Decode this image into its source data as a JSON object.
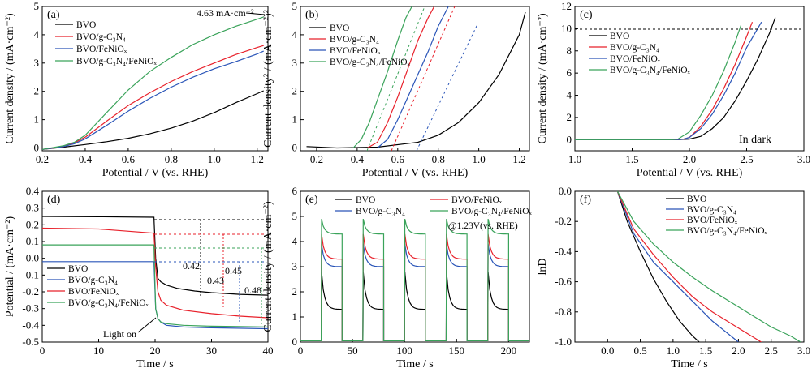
{
  "colors": {
    "black": "#000000",
    "red": "#e8212b",
    "blue": "#2a55b8",
    "green": "#3aa35a"
  },
  "chart_data": [
    {
      "panel": "(a)",
      "type": "line",
      "xlabel": "Potential / V (vs. RHE)",
      "ylabel": "Current density / (mA·cm⁻²)",
      "xlim": [
        0.2,
        1.25
      ],
      "ylim": [
        -0.1,
        5
      ],
      "xticks": [
        "0.2",
        "0.4",
        "0.6",
        "0.8",
        "1.0",
        "1.2"
      ],
      "yticks": [
        "0",
        "1",
        "2",
        "3",
        "4",
        "5"
      ],
      "annotation": "4.63 mA·cm⁻²",
      "series": [
        {
          "name": "BVO",
          "color": "black",
          "x": [
            0.2,
            0.3,
            0.4,
            0.5,
            0.6,
            0.7,
            0.8,
            0.9,
            1.0,
            1.1,
            1.2,
            1.23
          ],
          "y": [
            -0.05,
            0.03,
            0.12,
            0.22,
            0.34,
            0.5,
            0.7,
            0.95,
            1.25,
            1.6,
            1.92,
            2.02
          ]
        },
        {
          "name": "BVO/g-C₃N₄",
          "color": "red",
          "x": [
            0.2,
            0.3,
            0.35,
            0.4,
            0.5,
            0.6,
            0.7,
            0.8,
            0.9,
            1.0,
            1.1,
            1.2,
            1.23
          ],
          "y": [
            -0.05,
            0.05,
            0.18,
            0.38,
            0.95,
            1.5,
            1.95,
            2.35,
            2.7,
            3.0,
            3.3,
            3.55,
            3.62
          ]
        },
        {
          "name": "BVO/FeNiOₓ",
          "color": "blue",
          "x": [
            0.2,
            0.3,
            0.35,
            0.4,
            0.5,
            0.6,
            0.7,
            0.8,
            0.9,
            1.0,
            1.1,
            1.2,
            1.23
          ],
          "y": [
            -0.05,
            0.05,
            0.15,
            0.32,
            0.8,
            1.3,
            1.75,
            2.15,
            2.5,
            2.8,
            3.05,
            3.32,
            3.42
          ]
        },
        {
          "name": "BVO/g-C₃N₄/FeNiOₓ",
          "color": "green",
          "x": [
            0.2,
            0.3,
            0.35,
            0.4,
            0.5,
            0.6,
            0.7,
            0.8,
            0.9,
            1.0,
            1.1,
            1.2,
            1.23
          ],
          "y": [
            -0.05,
            0.08,
            0.2,
            0.45,
            1.25,
            2.05,
            2.7,
            3.2,
            3.65,
            4.0,
            4.3,
            4.55,
            4.63
          ]
        }
      ]
    },
    {
      "panel": "(b)",
      "type": "line",
      "xlabel": "Potential / V (vs. RHE)",
      "ylabel": "Current density² / (mA·cm⁻²)²",
      "xlim": [
        0.12,
        1.25
      ],
      "ylim": [
        -0.1,
        5
      ],
      "xticks": [
        "0.2",
        "0.4",
        "0.6",
        "0.8",
        "1.0",
        "1.2"
      ],
      "yticks": [
        "0",
        "1",
        "2",
        "3",
        "4",
        "5"
      ],
      "series": [
        {
          "name": "BVO",
          "color": "black",
          "x": [
            0.15,
            0.3,
            0.5,
            0.7,
            0.8,
            0.9,
            1.0,
            1.1,
            1.2,
            1.23
          ],
          "y": [
            0.05,
            0.0,
            0.03,
            0.2,
            0.45,
            0.9,
            1.6,
            2.6,
            4.0,
            4.8
          ]
        },
        {
          "name": "BVO/g-C₃N₄",
          "color": "red",
          "x": [
            0.45,
            0.5,
            0.55,
            0.6,
            0.65,
            0.7,
            0.75,
            0.78
          ],
          "y": [
            0.0,
            0.2,
            0.9,
            1.8,
            2.8,
            3.8,
            4.6,
            5.0
          ]
        },
        {
          "name": "BVO/FeNiOₓ",
          "color": "blue",
          "x": [
            0.5,
            0.55,
            0.6,
            0.65,
            0.7,
            0.75,
            0.8,
            0.85
          ],
          "y": [
            0.0,
            0.3,
            1.0,
            1.8,
            2.6,
            3.4,
            4.3,
            5.0
          ]
        },
        {
          "name": "BVO/g-C₃N₄/FeNiOₓ",
          "color": "green",
          "x": [
            0.38,
            0.42,
            0.46,
            0.5,
            0.55,
            0.6,
            0.64,
            0.67
          ],
          "y": [
            0.0,
            0.3,
            0.9,
            1.7,
            2.7,
            3.8,
            4.6,
            5.0
          ]
        }
      ]
    },
    {
      "panel": "(c)",
      "type": "line",
      "xlabel": "Potential / V (vs. RHE)",
      "ylabel": "Current density / (mA·cm⁻²)",
      "xlim": [
        1.0,
        3.0
      ],
      "ylim": [
        -1,
        12
      ],
      "xticks": [
        "1.0",
        "1.5",
        "2.0",
        "2.5",
        "3.0"
      ],
      "yticks": [
        "0",
        "2",
        "4",
        "6",
        "8",
        "10",
        "12"
      ],
      "annotation": "In dark",
      "series": [
        {
          "name": "BVO",
          "color": "black",
          "x": [
            1.0,
            1.9,
            2.0,
            2.1,
            2.2,
            2.3,
            2.4,
            2.5,
            2.6,
            2.7,
            2.75
          ],
          "y": [
            0,
            0,
            0.05,
            0.3,
            1.0,
            2.0,
            3.5,
            5.3,
            7.3,
            9.6,
            11
          ]
        },
        {
          "name": "BVO/g-C₃N₄",
          "color": "red",
          "x": [
            1.0,
            1.9,
            1.95,
            2.0,
            2.1,
            2.2,
            2.3,
            2.4,
            2.5,
            2.55
          ],
          "y": [
            0,
            0,
            0.05,
            0.2,
            1.2,
            2.7,
            4.6,
            6.8,
            9.3,
            10.6
          ]
        },
        {
          "name": "BVO/FeNiOₓ",
          "color": "blue",
          "x": [
            1.0,
            1.9,
            1.95,
            2.0,
            2.1,
            2.2,
            2.3,
            2.4,
            2.5,
            2.63
          ],
          "y": [
            0,
            0,
            0.05,
            0.2,
            1.0,
            2.3,
            4.0,
            6.0,
            8.3,
            10.6
          ]
        },
        {
          "name": "BVO/g-C₃N₄/FeNiOₓ",
          "color": "green",
          "x": [
            1.0,
            1.85,
            1.9,
            2.0,
            2.1,
            2.2,
            2.3,
            2.4,
            2.45
          ],
          "y": [
            0,
            0,
            0.05,
            0.7,
            2.2,
            4.0,
            6.2,
            8.8,
            10.3
          ]
        }
      ]
    },
    {
      "panel": "(d)",
      "type": "line",
      "xlabel": "Time / s",
      "ylabel": "Potential / (mA·cm⁻²)",
      "xlim": [
        0,
        40
      ],
      "ylim": [
        -0.5,
        0.4
      ],
      "xticks": [
        "0",
        "10",
        "20",
        "30",
        "40"
      ],
      "yticks": [
        "0.4",
        "0.3",
        "0.2",
        "0.1",
        "0.0",
        "-0.1",
        "-0.2",
        "-0.3",
        "-0.4",
        "-0.5"
      ],
      "annotations": [
        {
          "text": "0.42",
          "color": "black"
        },
        {
          "text": "0.43",
          "color": "red"
        },
        {
          "text": "0.45",
          "color": "blue"
        },
        {
          "text": "0.48",
          "color": "green"
        },
        {
          "text": "Light on",
          "color": "black"
        }
      ],
      "series": [
        {
          "name": "BVO",
          "color": "black",
          "x": [
            0,
            10,
            19.8,
            20.1,
            20.5,
            21,
            22,
            24,
            27,
            30,
            35,
            40
          ],
          "y": [
            0.25,
            0.248,
            0.245,
            0.0,
            -0.12,
            -0.14,
            -0.16,
            -0.18,
            -0.195,
            -0.205,
            -0.215,
            -0.22
          ]
        },
        {
          "name": "BVO/g-C₃N₄",
          "color": "blue",
          "x": [
            0,
            10,
            19.8,
            20.1,
            20.5,
            21,
            22,
            25,
            30,
            40
          ],
          "y": [
            -0.02,
            -0.02,
            -0.02,
            -0.3,
            -0.36,
            -0.38,
            -0.4,
            -0.41,
            -0.415,
            -0.42
          ]
        },
        {
          "name": "BVO/FeNiOₓ",
          "color": "red",
          "x": [
            0,
            10,
            19.8,
            20.1,
            20.5,
            21,
            22,
            25,
            30,
            35,
            40
          ],
          "y": [
            0.18,
            0.175,
            0.15,
            -0.05,
            -0.2,
            -0.25,
            -0.28,
            -0.31,
            -0.33,
            -0.345,
            -0.355
          ]
        },
        {
          "name": "BVO/g-C₃N₄/FeNiOₓ",
          "color": "green",
          "x": [
            0,
            10,
            19.8,
            20.1,
            20.5,
            21,
            22,
            25,
            30,
            40
          ],
          "y": [
            0.08,
            0.08,
            0.08,
            -0.3,
            -0.36,
            -0.38,
            -0.39,
            -0.4,
            -0.405,
            -0.41
          ]
        }
      ]
    },
    {
      "panel": "(e)",
      "type": "line",
      "xlabel": "Time / s",
      "ylabel": "Current density / (mA·cm⁻²)",
      "xlim": [
        0,
        220
      ],
      "ylim": [
        0,
        6
      ],
      "xticks": [
        "0",
        "50",
        "100",
        "150",
        "200"
      ],
      "yticks": [
        "0",
        "1",
        "2",
        "3",
        "4",
        "5",
        "6"
      ],
      "annotation": "@1.23V(vs. RHE)",
      "light_on_windows": [
        [
          20,
          40
        ],
        [
          60,
          80
        ],
        [
          100,
          120
        ],
        [
          140,
          160
        ],
        [
          180,
          200
        ]
      ],
      "series": [
        {
          "name": "BVO",
          "color": "black",
          "peak": 2.8,
          "steady": 1.3,
          "dark": 0.05
        },
        {
          "name": "BVO/g-C₃N₄",
          "color": "blue",
          "peak": 3.9,
          "steady": 3.0,
          "dark": 0.05
        },
        {
          "name": "BVO/FeNiOₓ",
          "color": "red",
          "peak": 4.3,
          "steady": 3.3,
          "dark": 0.05
        },
        {
          "name": "BVO/g-C₃N₄/FeNiOₓ",
          "color": "green",
          "peak": 4.9,
          "steady": 4.3,
          "dark": 0.05
        }
      ]
    },
    {
      "panel": "(f)",
      "type": "line",
      "xlabel": "Time / s",
      "ylabel": "lnD",
      "xlim": [
        -0.5,
        3.0
      ],
      "ylim": [
        -1.0,
        0.0
      ],
      "xticks": [
        "0.0",
        "0.5",
        "1.0",
        "1.5",
        "2.0",
        "2.5",
        "3.0"
      ],
      "yticks": [
        "0.0",
        "-0.2",
        "-0.4",
        "-0.6",
        "-0.8",
        "-1.0"
      ],
      "series": [
        {
          "name": "BVO",
          "color": "black",
          "x": [
            0.15,
            0.3,
            0.5,
            0.7,
            0.9,
            1.1,
            1.3,
            1.4
          ],
          "y": [
            0.0,
            -0.2,
            -0.4,
            -0.58,
            -0.73,
            -0.86,
            -0.96,
            -1.0
          ]
        },
        {
          "name": "BVO/g-C₃N₄",
          "color": "blue",
          "x": [
            0.15,
            0.4,
            0.7,
            1.0,
            1.3,
            1.6,
            1.8,
            2.0
          ],
          "y": [
            0.0,
            -0.28,
            -0.47,
            -0.6,
            -0.73,
            -0.86,
            -0.93,
            -1.0
          ]
        },
        {
          "name": "BVO/FeNiOₓ",
          "color": "red",
          "x": [
            0.15,
            0.4,
            0.7,
            1.0,
            1.3,
            1.6,
            1.9,
            2.2,
            2.35
          ],
          "y": [
            0.0,
            -0.25,
            -0.42,
            -0.57,
            -0.7,
            -0.8,
            -0.88,
            -0.96,
            -1.0
          ]
        },
        {
          "name": "BVO/g-C₃N₄/FeNiOₓ",
          "color": "green",
          "x": [
            0.15,
            0.4,
            0.7,
            1.0,
            1.3,
            1.6,
            1.9,
            2.2,
            2.5,
            2.8,
            2.95
          ],
          "y": [
            0.0,
            -0.2,
            -0.35,
            -0.47,
            -0.57,
            -0.66,
            -0.74,
            -0.82,
            -0.9,
            -0.96,
            -1.0
          ]
        }
      ]
    }
  ]
}
